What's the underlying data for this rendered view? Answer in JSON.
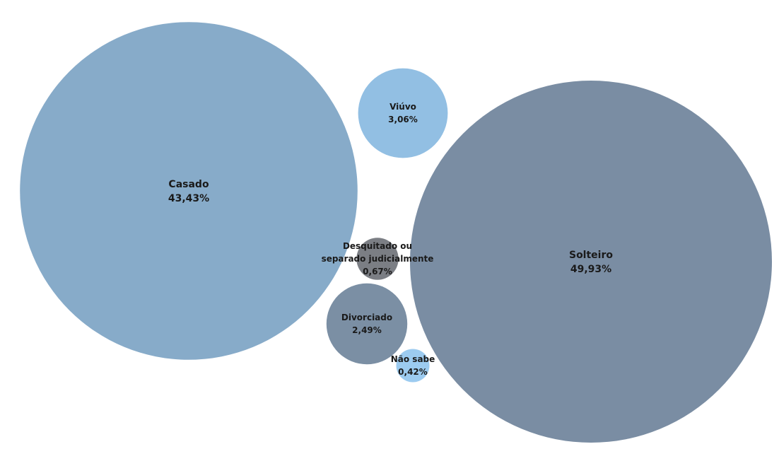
{
  "chart_data": {
    "type": "bubble",
    "title": "",
    "legend": "none",
    "series": [
      {
        "name": "Solteiro",
        "value_label": "49,93%",
        "value": 49.93,
        "color": "#7a8da3"
      },
      {
        "name": "Casado",
        "value_label": "43,43%",
        "value": 43.43,
        "color": "#87abc9"
      },
      {
        "name": "Viúvo",
        "value_label": "3,06%",
        "value": 3.06,
        "color": "#92bfe3"
      },
      {
        "name": "Divorciado",
        "value_label": "2,49%",
        "value": 2.49,
        "color": "#7b8fa4"
      },
      {
        "name": "Desquitado ou separado judicialmente",
        "value_label": "0,67%",
        "value": 0.67,
        "color": "#7b7e84"
      },
      {
        "name": "Não sabe",
        "value_label": "0,42%",
        "value": 0.42,
        "color": "#9ccbf0"
      }
    ]
  }
}
